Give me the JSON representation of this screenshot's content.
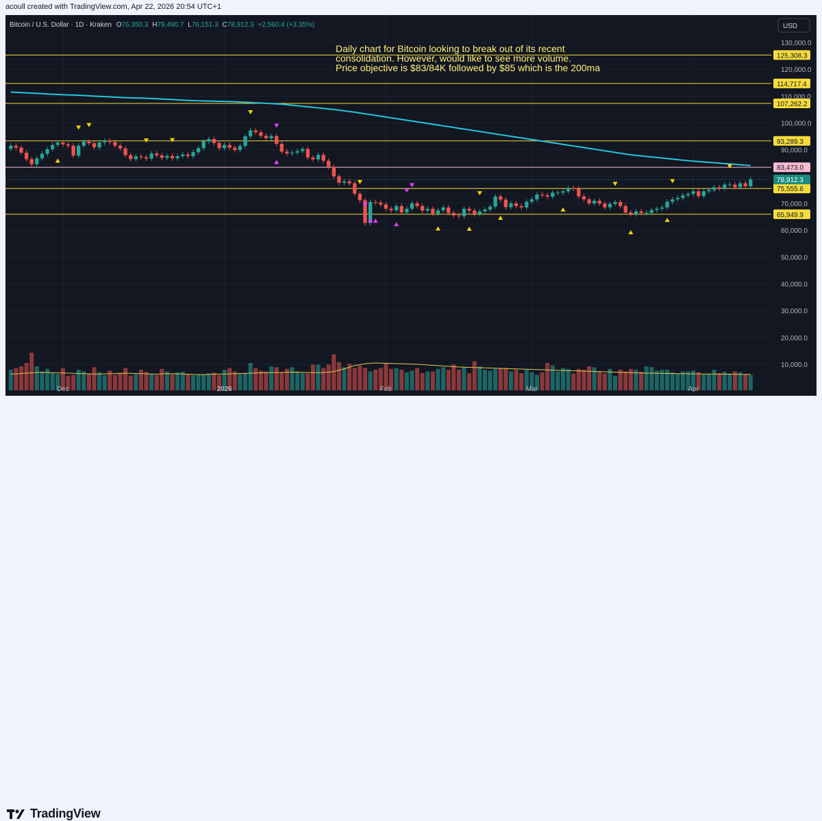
{
  "header": {
    "credit": "acoull created with TradingView.com, Apr 22, 2026 20:54 UTC+1"
  },
  "legend": {
    "symbol": "Bitcoin / U.S. Dollar · 1D · Kraken",
    "open_label": "O",
    "open": "76,350.3",
    "high_label": "H",
    "high": "79,490.7",
    "low_label": "L",
    "low": "76,151.3",
    "close_label": "C",
    "close": "78,912.3",
    "change": "+2,560.4 (+3.35%)"
  },
  "currency_button": "USD",
  "annotation": [
    "Daily chart for Bitcoin looking to break out of its recent",
    "consolidation. However, would like to see more volume.",
    "Price objective is $83/84K followed by $85 which is the 200ma"
  ],
  "footer": {
    "brand": "TradingView"
  },
  "colors": {
    "background": "#131722",
    "up": "#26a69a",
    "down": "#ef5350",
    "level_line": "#f5dc3c",
    "pink_line": "#f8bbd0",
    "ma200": "#26c6da",
    "volume_ma": "#e6c84a",
    "marker_yellow": "#ffd600",
    "marker_magenta": "#e040fb"
  },
  "chart_data": {
    "type": "candlestick",
    "title": "Bitcoin / U.S. Dollar · 1D · Kraken",
    "x_labels": [
      {
        "label": "Dec",
        "index": 10
      },
      {
        "label": "2026",
        "index": 41
      },
      {
        "label": "Feb",
        "index": 72
      },
      {
        "label": "Mar",
        "index": 100
      },
      {
        "label": "Apr",
        "index": 131
      }
    ],
    "y_ticks": [
      130000,
      120000,
      110000,
      100000,
      90000,
      80000,
      70000,
      60000,
      50000,
      40000,
      30000,
      20000,
      10000
    ],
    "y_tick_labels": [
      "130,000.0",
      "120,000.0",
      "110,000.0",
      "100,000.0",
      "90,000.0",
      "80,000.0",
      "70,000.0",
      "60,000.0",
      "50,000.0",
      "40,000.0",
      "30,000.0",
      "20,000.0",
      "10,000.0"
    ],
    "ylim": [
      0,
      137000
    ],
    "levels": [
      {
        "value": 125308.3,
        "label": "125,308.3",
        "style": "yellow"
      },
      {
        "value": 114717.4,
        "label": "114,717.4",
        "style": "yellow"
      },
      {
        "value": 107262.2,
        "label": "107,262.2",
        "style": "yellow"
      },
      {
        "value": 93289.3,
        "label": "93,289.3",
        "style": "yellow"
      },
      {
        "value": 83473.0,
        "label": "83,473.0",
        "style": "pink"
      },
      {
        "value": 75555.6,
        "label": "75,555.6",
        "style": "yellow"
      },
      {
        "value": 65949.9,
        "label": "65,949.9",
        "style": "yellow"
      }
    ],
    "last_price": {
      "value": 78912.3,
      "label": "78,912.3"
    },
    "close": [
      91500,
      90800,
      88900,
      86500,
      84600,
      86800,
      88500,
      90200,
      91800,
      92700,
      92000,
      91500,
      87800,
      91500,
      93000,
      92400,
      90900,
      92700,
      93400,
      92900,
      91500,
      90500,
      88000,
      86500,
      87500,
      87200,
      86700,
      88600,
      87900,
      87000,
      87700,
      86800,
      87600,
      88200,
      87600,
      89100,
      90600,
      93100,
      94000,
      92500,
      90600,
      91800,
      90800,
      89900,
      91400,
      95000,
      97200,
      96500,
      95200,
      94300,
      95100,
      92200,
      89300,
      88600,
      88900,
      89500,
      90300,
      87100,
      86400,
      88100,
      85900,
      83600,
      80100,
      77700,
      78200,
      77500,
      73600,
      71200,
      62700,
      70500,
      70300,
      69600,
      68000,
      67400,
      69000,
      66600,
      68000,
      70000,
      69000,
      67300,
      68000,
      66200,
      67400,
      68500,
      66400,
      65500,
      65200,
      68000,
      67300,
      66000,
      67000,
      67700,
      68800,
      72600,
      71400,
      68600,
      70000,
      69000,
      68500,
      70600,
      71500,
      73300,
      73000,
      72500,
      74000,
      74000,
      74500,
      75600,
      75500,
      72600,
      71500,
      70000,
      71000,
      69900,
      68500,
      69800,
      70500,
      69000,
      66600,
      66000,
      67000,
      66400,
      66500,
      67500,
      68000,
      68500,
      70600,
      71500,
      72000,
      73000,
      73500,
      74500,
      72700,
      74500,
      75000,
      76000,
      75500,
      77000,
      77000,
      76000,
      77500,
      76350,
      78912
    ],
    "ma200": [
      111500,
      111400,
      111300,
      111200,
      111100,
      111000,
      110900,
      110800,
      110700,
      110600,
      110500,
      110450,
      110400,
      110300,
      110200,
      110100,
      110000,
      109900,
      109800,
      109700,
      109600,
      109500,
      109400,
      109350,
      109300,
      109250,
      109200,
      109100,
      109000,
      108900,
      108800,
      108700,
      108600,
      108500,
      108400,
      108300,
      108250,
      108200,
      108150,
      108100,
      108050,
      108000,
      107950,
      107900,
      107800,
      107700,
      107600,
      107500,
      107400,
      107300,
      107200,
      107100,
      107000,
      106800,
      106600,
      106400,
      106200,
      106000,
      105800,
      105600,
      105400,
      105200,
      105000,
      104750,
      104500,
      104250,
      104000,
      103700,
      103400,
      103100,
      102800,
      102500,
      102200,
      101900,
      101600,
      101300,
      101000,
      100700,
      100400,
      100100,
      99800,
      99500,
      99200,
      98900,
      98600,
      98300,
      98000,
      97700,
      97400,
      97100,
      96800,
      96500,
      96200,
      95900,
      95600,
      95300,
      95000,
      94700,
      94400,
      94100,
      93800,
      93500,
      93200,
      92900,
      92600,
      92300,
      92000,
      91700,
      91400,
      91100,
      90800,
      90500,
      90200,
      89900,
      89600,
      89300,
      89000,
      88700,
      88400,
      88100,
      87900,
      87700,
      87500,
      87300,
      87100,
      86900,
      86700,
      86500,
      86300,
      86100,
      85900,
      85750,
      85600,
      85450,
      85300,
      85150,
      85000,
      84850,
      84700,
      84550,
      84400,
      84250,
      84100
    ],
    "volume": [
      12000,
      13000,
      14000,
      16000,
      22000,
      14000,
      11000,
      12500,
      10000,
      9500,
      13000,
      8500,
      9000,
      12000,
      11000,
      9800,
      13500,
      10500,
      8800,
      11500,
      9000,
      10200,
      13000,
      8500,
      9400,
      12000,
      10800,
      9500,
      9000,
      12500,
      11000,
      9300,
      10500,
      10800,
      9200,
      8800,
      9000,
      9100,
      9800,
      10300,
      9000,
      12000,
      13000,
      11000,
      9500,
      10200,
      16000,
      13000,
      11500,
      11000,
      14000,
      13500,
      10500,
      12500,
      13500,
      11000,
      10000,
      9800,
      15000,
      15000,
      13000,
      15000,
      21000,
      16500,
      13500,
      15500,
      13000,
      14500,
      13000,
      11000,
      12000,
      13000,
      16000,
      12500,
      13000,
      12000,
      10500,
      11500,
      13000,
      10000,
      11000,
      11000,
      12500,
      13500,
      12000,
      15000,
      12000,
      13500,
      10000,
      17000,
      14000,
      12000,
      11500,
      12500,
      13000,
      13000,
      11000,
      12000,
      10000,
      12000,
      10500,
      9000,
      10500,
      16000,
      14500,
      11000,
      13000,
      12500,
      9800,
      12500,
      12000,
      14000,
      13500,
      11000,
      9800,
      12500,
      8500,
      12000,
      11000,
      12500,
      12000,
      10800,
      14000,
      13500,
      11500,
      12000,
      12000,
      10500,
      9800,
      11000,
      11000,
      11500,
      10500,
      9200,
      9600,
      12000,
      10000,
      10800,
      9800,
      11000,
      10500,
      9500,
      9000
    ],
    "volume_ma": [
      9500,
      9600,
      9800,
      10000,
      10200,
      10400,
      10500,
      10400,
      10300,
      10200,
      10100,
      10000,
      9900,
      9800,
      9700,
      9600,
      9500,
      9500,
      9600,
      9700,
      9800,
      9900,
      10000,
      9900,
      9800,
      9700,
      9600,
      9500,
      9500,
      9600,
      9700,
      9700,
      9600,
      9500,
      9400,
      9300,
      9200,
      9200,
      9300,
      9400,
      9500,
      9500,
      9600,
      9700,
      9800,
      9900,
      10000,
      10100,
      10200,
      10300,
      10300,
      10400,
      10400,
      10500,
      10600,
      10600,
      10500,
      10400,
      10300,
      10300,
      10400,
      10600,
      11000,
      11800,
      12500,
      13500,
      14500,
      15000,
      15500,
      15800,
      16000,
      15900,
      15800,
      15700,
      15600,
      15500,
      15400,
      15300,
      15200,
      15000,
      14800,
      14600,
      14400,
      14200,
      14000,
      13800,
      13600,
      13500,
      13400,
      13300,
      13200,
      13100,
      13000,
      12900,
      12800,
      12700,
      12600,
      12500,
      12400,
      12300,
      12200,
      12100,
      12000,
      11900,
      11800,
      11700,
      11600,
      11500,
      11400,
      11300,
      11200,
      11100,
      11000,
      10900,
      10800,
      10700,
      10600,
      10500,
      10400,
      10300,
      10200,
      10100,
      10000,
      10000,
      9900,
      9900,
      9800,
      9800,
      9700,
      9700,
      9600,
      9600,
      9600,
      9500,
      9500,
      9500,
      9400,
      9400,
      9400,
      9300,
      9300,
      9300,
      9300
    ],
    "markers": [
      {
        "index": 9,
        "type": "up"
      },
      {
        "index": 13,
        "type": "down"
      },
      {
        "index": 15,
        "type": "down"
      },
      {
        "index": 26,
        "type": "down"
      },
      {
        "index": 31,
        "type": "down"
      },
      {
        "index": 46,
        "type": "down"
      },
      {
        "index": 51,
        "type": "down_magenta"
      },
      {
        "index": 51,
        "type": "up_magenta"
      },
      {
        "index": 67,
        "type": "down"
      },
      {
        "index": 68,
        "type": "down_magenta"
      },
      {
        "index": 69,
        "type": "up_magenta"
      },
      {
        "index": 70,
        "type": "up_magenta"
      },
      {
        "index": 74,
        "type": "up_magenta"
      },
      {
        "index": 76,
        "type": "down_magenta"
      },
      {
        "index": 77,
        "type": "down_magenta"
      },
      {
        "index": 82,
        "type": "up"
      },
      {
        "index": 88,
        "type": "up"
      },
      {
        "index": 90,
        "type": "down"
      },
      {
        "index": 94,
        "type": "up"
      },
      {
        "index": 106,
        "type": "up"
      },
      {
        "index": 116,
        "type": "down"
      },
      {
        "index": 119,
        "type": "up"
      },
      {
        "index": 126,
        "type": "up"
      },
      {
        "index": 127,
        "type": "down"
      },
      {
        "index": 138,
        "type": "down"
      }
    ]
  }
}
